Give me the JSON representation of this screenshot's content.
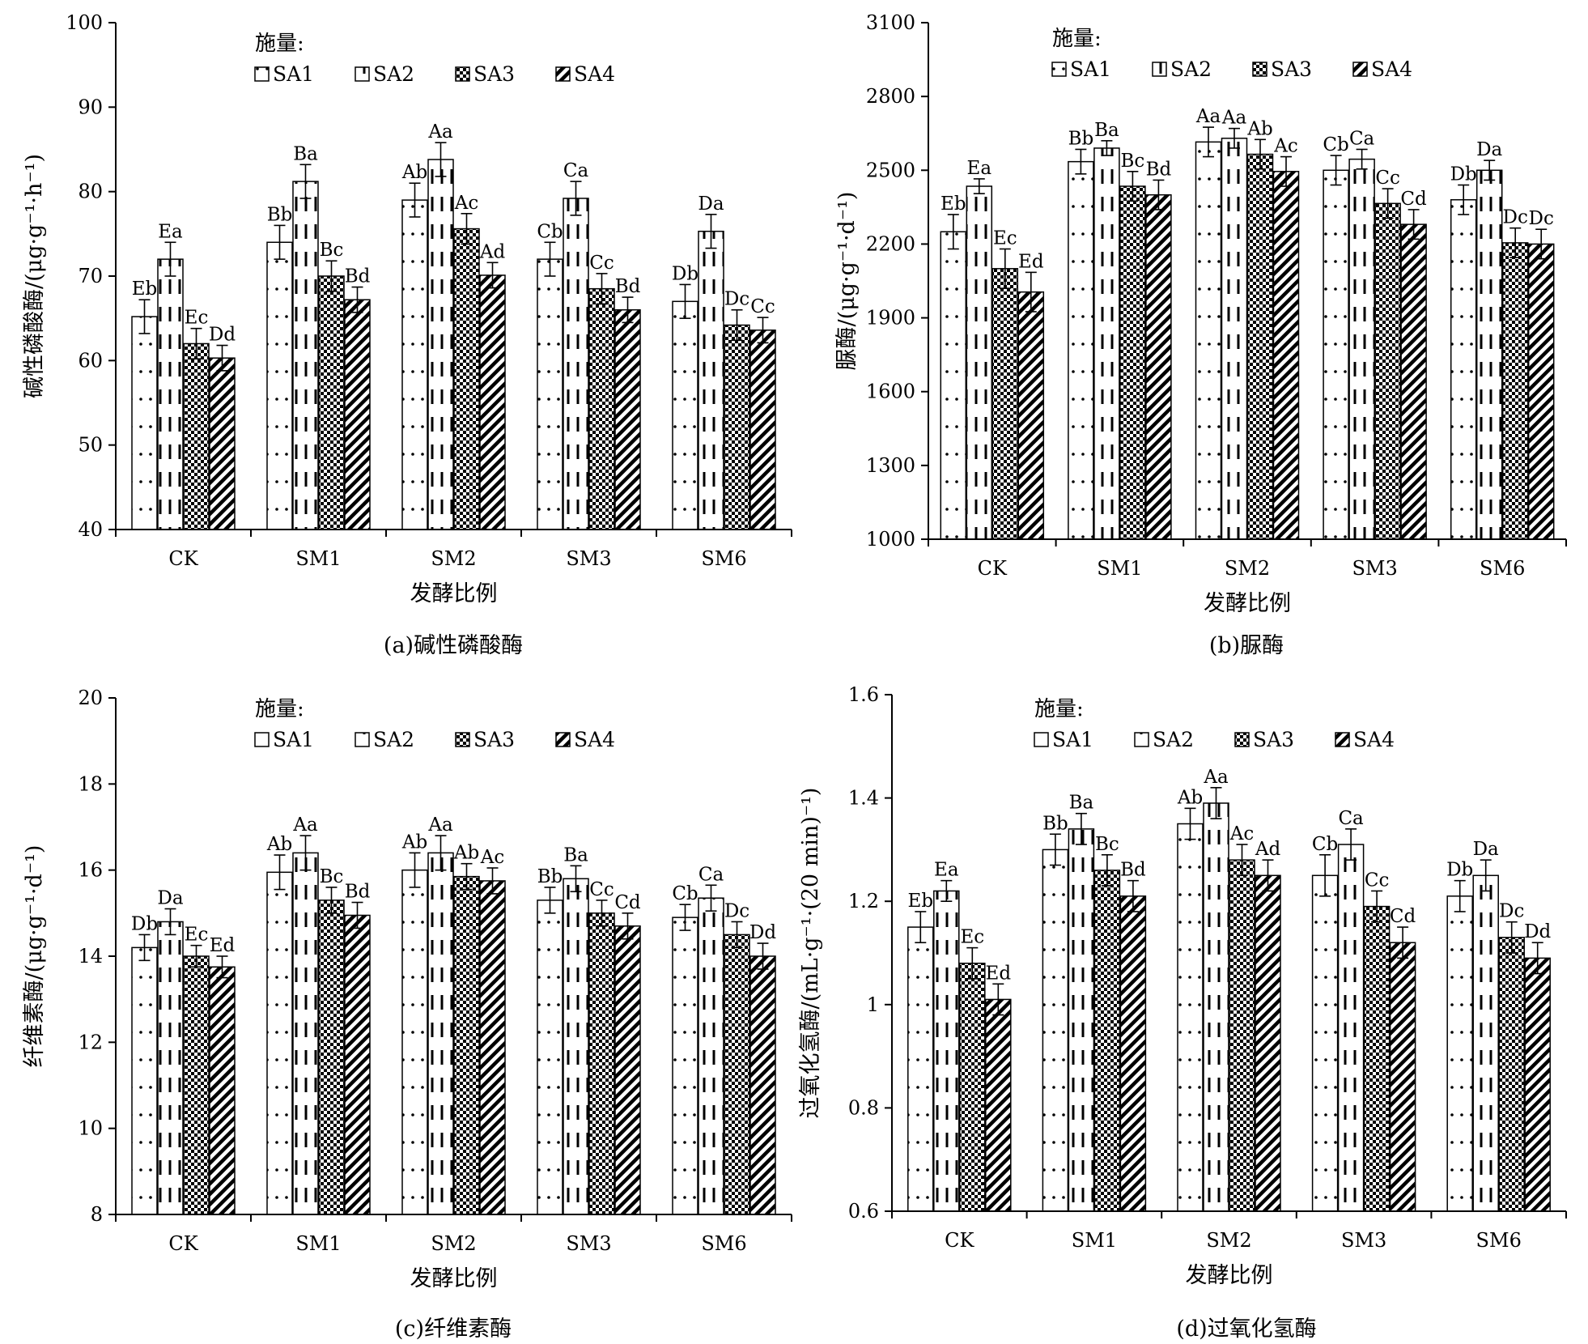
{
  "legend_title": "施量:",
  "chart_data": [
    {
      "type": "bar",
      "caption": "(a)碱性磷酸酶",
      "xlabel": "发酵比例",
      "ylabel": "碱性磷酸酶/(μg·g⁻¹·h⁻¹)",
      "ylim": [
        40,
        100
      ],
      "yticks": [
        40,
        50,
        60,
        70,
        80,
        90,
        100
      ],
      "grid": false,
      "legend_position": "top",
      "categories": [
        "CK",
        "SM1",
        "SM2",
        "SM3",
        "SM6"
      ],
      "series": [
        {
          "name": "SA1",
          "values": [
            65.2,
            74.0,
            79.0,
            72.0,
            67.0
          ],
          "errors": [
            2.0,
            2.0,
            2.0,
            2.0,
            2.0
          ],
          "labels": [
            "Eb",
            "Bb",
            "Ab",
            "Cb",
            "Db"
          ]
        },
        {
          "name": "SA2",
          "values": [
            72.0,
            81.2,
            83.8,
            79.2,
            75.3
          ],
          "errors": [
            2.0,
            2.0,
            2.0,
            2.0,
            2.0
          ],
          "labels": [
            "Ea",
            "Ba",
            "Aa",
            "Ca",
            "Da"
          ]
        },
        {
          "name": "SA3",
          "values": [
            62.0,
            70.0,
            75.6,
            68.5,
            64.2
          ],
          "errors": [
            1.8,
            1.8,
            1.8,
            1.8,
            1.8
          ],
          "labels": [
            "Ec",
            "Bc",
            "Ac",
            "Cc",
            "Dc"
          ]
        },
        {
          "name": "SA4",
          "values": [
            60.3,
            67.2,
            70.1,
            66.0,
            63.6
          ],
          "errors": [
            1.5,
            1.5,
            1.5,
            1.5,
            1.5
          ],
          "labels": [
            "Dd",
            "Bd",
            "Ad",
            "Bd",
            "Cc"
          ]
        }
      ]
    },
    {
      "type": "bar",
      "caption": "(b)脲酶",
      "xlabel": "发酵比例",
      "ylabel": "脲酶/(μg·g⁻¹·d⁻¹)",
      "ylim": [
        1000,
        3100
      ],
      "yticks": [
        1000,
        1300,
        1600,
        1900,
        2200,
        2500,
        2800,
        3100
      ],
      "grid": false,
      "legend_position": "top",
      "categories": [
        "CK",
        "SM1",
        "SM2",
        "SM3",
        "SM6"
      ],
      "series": [
        {
          "name": "SA1",
          "values": [
            2250,
            2535,
            2615,
            2500,
            2380
          ],
          "errors": [
            70,
            50,
            60,
            60,
            60
          ],
          "labels": [
            "Eb",
            "Bb",
            "Aa",
            "Cb",
            "Db"
          ]
        },
        {
          "name": "SA2",
          "values": [
            2435,
            2590,
            2630,
            2545,
            2500
          ],
          "errors": [
            30,
            30,
            40,
            40,
            40
          ],
          "labels": [
            "Ea",
            "Ba",
            "Aa",
            "Ca",
            "Da"
          ]
        },
        {
          "name": "SA3",
          "values": [
            2100,
            2435,
            2565,
            2365,
            2205
          ],
          "errors": [
            80,
            60,
            60,
            60,
            60
          ],
          "labels": [
            "Ec",
            "Bc",
            "Ab",
            "Cc",
            "Dc"
          ]
        },
        {
          "name": "SA4",
          "values": [
            2005,
            2400,
            2495,
            2280,
            2200
          ],
          "errors": [
            80,
            60,
            60,
            60,
            60
          ],
          "labels": [
            "Ed",
            "Bd",
            "Ac",
            "Cd",
            "Dc"
          ]
        }
      ]
    },
    {
      "type": "bar",
      "caption": "(c)纤维素酶",
      "xlabel": "发酵比例",
      "ylabel": "纤维素酶/(μg·g⁻¹·d⁻¹)",
      "ylim": [
        8,
        20
      ],
      "yticks": [
        8,
        10,
        12,
        14,
        16,
        18,
        20
      ],
      "grid": false,
      "legend_position": "top",
      "categories": [
        "CK",
        "SM1",
        "SM2",
        "SM3",
        "SM6"
      ],
      "series": [
        {
          "name": "SA1",
          "values": [
            14.2,
            15.95,
            16.0,
            15.3,
            14.9
          ],
          "errors": [
            0.3,
            0.4,
            0.4,
            0.3,
            0.3
          ],
          "labels": [
            "Db",
            "Ab",
            "Ab",
            "Bb",
            "Cb"
          ]
        },
        {
          "name": "SA2",
          "values": [
            14.8,
            16.4,
            16.4,
            15.8,
            15.35
          ],
          "errors": [
            0.3,
            0.4,
            0.4,
            0.3,
            0.3
          ],
          "labels": [
            "Da",
            "Aa",
            "Aa",
            "Ba",
            "Ca"
          ]
        },
        {
          "name": "SA3",
          "values": [
            14.0,
            15.3,
            15.85,
            15.0,
            14.5
          ],
          "errors": [
            0.25,
            0.3,
            0.3,
            0.3,
            0.3
          ],
          "labels": [
            "Ec",
            "Bc",
            "Ab",
            "Cc",
            "Dc"
          ]
        },
        {
          "name": "SA4",
          "values": [
            13.75,
            14.95,
            15.75,
            14.7,
            14.0
          ],
          "errors": [
            0.25,
            0.3,
            0.3,
            0.3,
            0.3
          ],
          "labels": [
            "Ed",
            "Bd",
            "Ac",
            "Cd",
            "Dd"
          ]
        }
      ]
    },
    {
      "type": "bar",
      "caption": "(d)过氧化氢酶",
      "xlabel": "发酵比例",
      "ylabel": "过氧化氢酶/(mL·g⁻¹·(20 min)⁻¹)",
      "ylim": [
        0.6,
        1.6
      ],
      "yticks": [
        0.6,
        0.8,
        1,
        1.2,
        1.4,
        1.6
      ],
      "grid": false,
      "legend_position": "top",
      "categories": [
        "CK",
        "SM1",
        "SM2",
        "SM3",
        "SM6"
      ],
      "series": [
        {
          "name": "SA1",
          "values": [
            1.15,
            1.3,
            1.35,
            1.25,
            1.21
          ],
          "errors": [
            0.03,
            0.03,
            0.03,
            0.04,
            0.03
          ],
          "labels": [
            "Eb",
            "Bb",
            "Ab",
            "Cb",
            "Db"
          ]
        },
        {
          "name": "SA2",
          "values": [
            1.22,
            1.34,
            1.39,
            1.31,
            1.25
          ],
          "errors": [
            0.02,
            0.03,
            0.03,
            0.03,
            0.03
          ],
          "labels": [
            "Ea",
            "Ba",
            "Aa",
            "Ca",
            "Da"
          ]
        },
        {
          "name": "SA3",
          "values": [
            1.08,
            1.26,
            1.28,
            1.19,
            1.13
          ],
          "errors": [
            0.03,
            0.03,
            0.03,
            0.03,
            0.03
          ],
          "labels": [
            "Ec",
            "Bc",
            "Ac",
            "Cc",
            "Dc"
          ]
        },
        {
          "name": "SA4",
          "values": [
            1.01,
            1.21,
            1.25,
            1.12,
            1.09
          ],
          "errors": [
            0.03,
            0.03,
            0.03,
            0.03,
            0.03
          ],
          "labels": [
            "Ed",
            "Bd",
            "Ad",
            "Cd",
            "Dd"
          ]
        }
      ]
    }
  ]
}
